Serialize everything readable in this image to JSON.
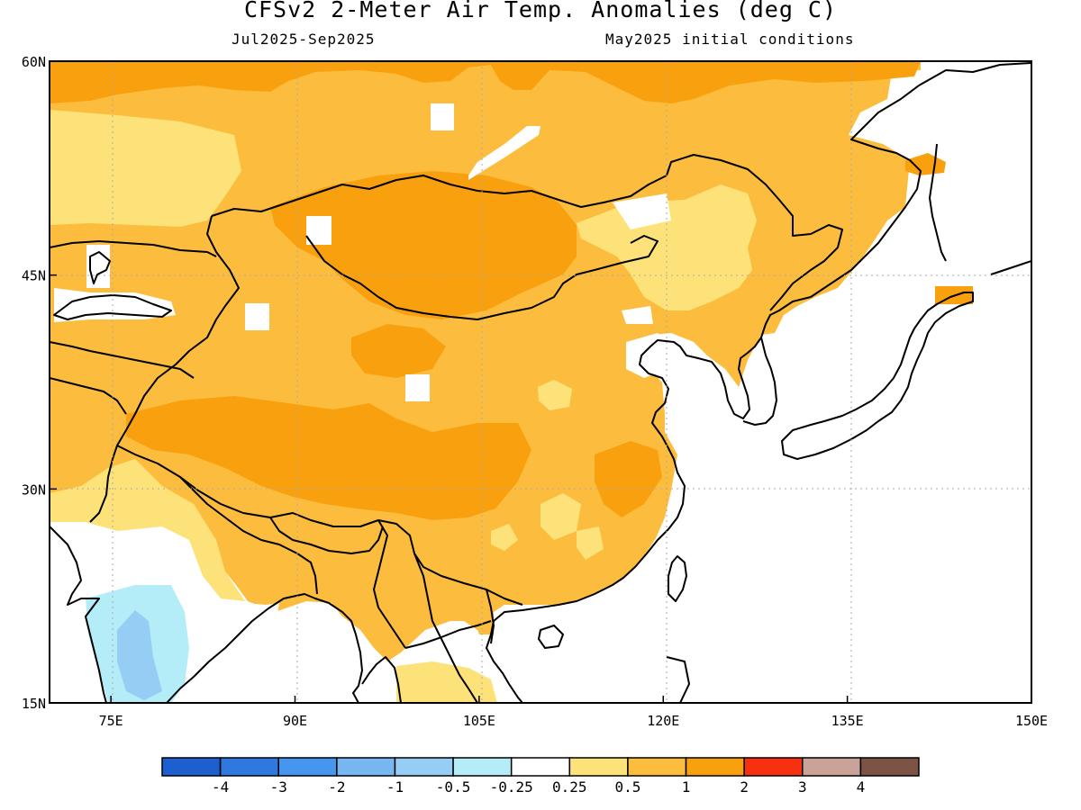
{
  "header": {
    "title": "CFSv2 2-Meter Air Temp. Anomalies (deg C)",
    "period": "Jul2025-Sep2025",
    "initial_conditions": "May2025 initial conditions"
  },
  "map": {
    "lon_range": [
      70,
      150
    ],
    "lat_range": [
      15,
      60
    ],
    "lon_ticks": [
      {
        "value": 75,
        "label": "75E"
      },
      {
        "value": 90,
        "label": "90E"
      },
      {
        "value": 105,
        "label": "105E"
      },
      {
        "value": 120,
        "label": "120E"
      },
      {
        "value": 135,
        "label": "135E"
      },
      {
        "value": 150,
        "label": "150E"
      }
    ],
    "lat_ticks": [
      {
        "value": 60,
        "label": "60N"
      },
      {
        "value": 45,
        "label": "45N"
      },
      {
        "value": 30,
        "label": "30N"
      },
      {
        "value": 15,
        "label": "15N"
      }
    ]
  },
  "colorbar": {
    "bins": [
      {
        "color": "#1e5fcf"
      },
      {
        "color": "#2e78e0"
      },
      {
        "color": "#4596ee"
      },
      {
        "color": "#78b6f2"
      },
      {
        "color": "#96cdf5"
      },
      {
        "color": "#b4ecf8"
      },
      {
        "color": "#ffffff"
      },
      {
        "color": "#fde27a"
      },
      {
        "color": "#fcbd3e"
      },
      {
        "color": "#f9a00f"
      },
      {
        "color": "#f7310f"
      },
      {
        "color": "#c9a397"
      },
      {
        "color": "#7c5344"
      }
    ],
    "labels": [
      "-4",
      "-3",
      "-2",
      "-1",
      "-0.5",
      "-0.25",
      "0.25",
      "0.5",
      "1",
      "2",
      "3",
      "4"
    ]
  }
}
